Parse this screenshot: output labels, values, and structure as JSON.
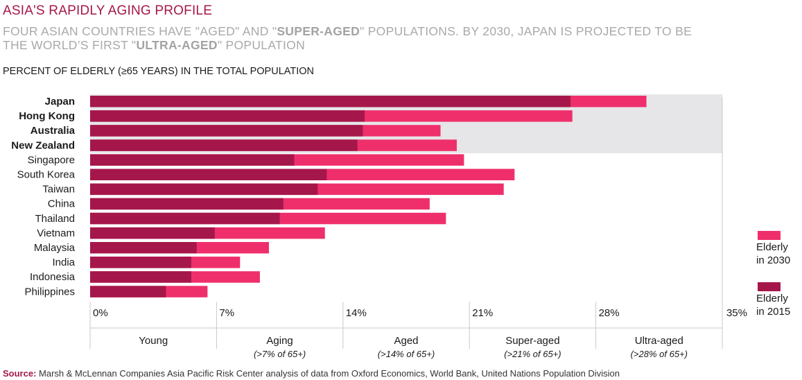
{
  "header": {
    "title": "ASIA'S RAPIDLY AGING PROFILE",
    "subtitle": [
      {
        "text": "FOUR ASIAN COUNTRIES HAVE \"AGED\" AND \"",
        "bold": false
      },
      {
        "text": "SUPER-AGED",
        "bold": true
      },
      {
        "text": "\" POPULATIONS. BY 2030, JAPAN IS PROJECTED TO BE THE WORLD’S FIRST \"",
        "bold": false
      },
      {
        "text": "ULTRA-AGED",
        "bold": true
      },
      {
        "text": "\" POPULATION",
        "bold": false
      }
    ],
    "axis_heading": "PERCENT OF ELDERLY (≥65 YEARS) IN THE TOTAL POPULATION"
  },
  "colors": {
    "elderly_2015": "#a5174a",
    "elderly_2030": "#ef2f6b",
    "highlight_band": "#e6e6e8",
    "title": "#a5174a"
  },
  "chart_data": {
    "type": "bar",
    "orientation": "horizontal",
    "bar_layout": "overlaid",
    "categories": [
      "Japan",
      "Hong Kong",
      "Australia",
      "New Zealand",
      "Singapore",
      "South Korea",
      "Taiwan",
      "China",
      "Thailand",
      "Vietnam",
      "Malaysia",
      "India",
      "Indonesia",
      "Philippines"
    ],
    "highlighted_categories": [
      "Japan",
      "Hong Kong",
      "Australia",
      "New Zealand"
    ],
    "series": [
      {
        "name": "Elderly in 2015",
        "color": "#a5174a",
        "values": [
          26.6,
          15.2,
          15.1,
          14.8,
          11.3,
          13.1,
          12.6,
          10.7,
          10.5,
          6.9,
          5.9,
          5.6,
          5.6,
          4.2
        ]
      },
      {
        "name": "Elderly in 2030",
        "color": "#ef2f6b",
        "values": [
          30.8,
          26.7,
          19.4,
          20.3,
          20.7,
          23.5,
          22.9,
          18.8,
          19.7,
          13.0,
          9.9,
          8.3,
          9.4,
          6.5
        ]
      }
    ],
    "xlim": [
      0,
      35
    ],
    "xticks": [
      0,
      7,
      14,
      21,
      28,
      35
    ],
    "xtick_labels": [
      "0%",
      "7%",
      "14%",
      "21%",
      "28%",
      "35%"
    ],
    "grid": false,
    "legend_position": "right",
    "bands": [
      {
        "label": "Young",
        "note": ""
      },
      {
        "label": "Aging",
        "note": "(>7% of 65+)"
      },
      {
        "label": "Aged",
        "note": "(>14% of 65+)"
      },
      {
        "label": "Super-aged",
        "note": "(>21% of 65+)"
      },
      {
        "label": "Ultra-aged",
        "note": "(>28% of 65+)"
      }
    ],
    "legend": [
      {
        "label_lines": [
          "Elderly",
          "in 2030"
        ],
        "color": "#ef2f6b"
      },
      {
        "label_lines": [
          "Elderly",
          "in 2015"
        ],
        "color": "#a5174a"
      }
    ]
  },
  "source": {
    "label": "Source:",
    "text": " Marsh & McLennan Companies Asia Pacific Risk Center analysis of data from Oxford Economics, World Bank, United Nations Population Division"
  }
}
